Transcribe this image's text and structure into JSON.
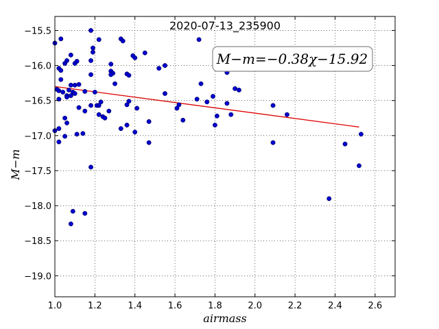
{
  "chart_data": {
    "type": "scatter",
    "title": "2020-07-13_235900",
    "xlabel": "airmass",
    "ylabel": "M−m",
    "xlim": [
      1.0,
      2.7
    ],
    "ylim": [
      -19.3,
      -15.3
    ],
    "y_inverted": true,
    "grid": true,
    "xticks": [
      1.0,
      1.2,
      1.4,
      1.6,
      1.8,
      2.0,
      2.2,
      2.4,
      2.6
    ],
    "yticks": [
      -15.5,
      -16.0,
      -16.5,
      -17.0,
      -17.5,
      -18.0,
      -18.5,
      -19.0
    ],
    "xtick_labels": [
      "1.0",
      "1.2",
      "1.4",
      "1.6",
      "1.8",
      "2.0",
      "2.2",
      "2.4",
      "2.6"
    ],
    "ytick_labels": [
      "−15.5",
      "−16.0",
      "−16.5",
      "−17.0",
      "−17.5",
      "−18.0",
      "−18.5",
      "−19.0"
    ],
    "annotation": "M−m=−0.38χ−15.92",
    "annotation_placement": "top-right",
    "point_color": "#0000cc",
    "fit_color": "#dd0000",
    "fit_line": {
      "slope": -0.38,
      "intercept": -15.92,
      "x_range": [
        1.0,
        2.52
      ]
    },
    "points": [
      {
        "x": 1.0,
        "y": -15.68
      },
      {
        "x": 1.02,
        "y": -16.04
      },
      {
        "x": 1.03,
        "y": -16.07
      },
      {
        "x": 1.03,
        "y": -15.62
      },
      {
        "x": 1.01,
        "y": -16.34
      },
      {
        "x": 1.02,
        "y": -16.36
      },
      {
        "x": 1.04,
        "y": -16.38
      },
      {
        "x": 1.03,
        "y": -16.2
      },
      {
        "x": 1.02,
        "y": -16.48
      },
      {
        "x": 1.05,
        "y": -15.97
      },
      {
        "x": 1.06,
        "y": -15.93
      },
      {
        "x": 1.08,
        "y": -15.85
      },
      {
        "x": 1.1,
        "y": -15.97
      },
      {
        "x": 1.11,
        "y": -15.94
      },
      {
        "x": 1.08,
        "y": -16.28
      },
      {
        "x": 1.1,
        "y": -16.28
      },
      {
        "x": 1.12,
        "y": -16.27
      },
      {
        "x": 1.07,
        "y": -16.35
      },
      {
        "x": 1.09,
        "y": -16.38
      },
      {
        "x": 1.06,
        "y": -16.43
      },
      {
        "x": 1.08,
        "y": -16.43
      },
      {
        "x": 1.1,
        "y": -16.4
      },
      {
        "x": 1.06,
        "y": -16.45
      },
      {
        "x": 1.05,
        "y": -16.75
      },
      {
        "x": 1.06,
        "y": -16.82
      },
      {
        "x": 1.0,
        "y": -16.93
      },
      {
        "x": 1.02,
        "y": -16.9
      },
      {
        "x": 1.05,
        "y": -17.01
      },
      {
        "x": 1.02,
        "y": -17.09
      },
      {
        "x": 1.11,
        "y": -16.98
      },
      {
        "x": 1.14,
        "y": -16.97
      },
      {
        "x": 1.12,
        "y": -16.6
      },
      {
        "x": 1.15,
        "y": -16.65
      },
      {
        "x": 1.15,
        "y": -16.37
      },
      {
        "x": 1.18,
        "y": -15.5
      },
      {
        "x": 1.19,
        "y": -15.75
      },
      {
        "x": 1.19,
        "y": -15.81
      },
      {
        "x": 1.22,
        "y": -15.63
      },
      {
        "x": 1.18,
        "y": -15.93
      },
      {
        "x": 1.18,
        "y": -16.13
      },
      {
        "x": 1.2,
        "y": -16.38
      },
      {
        "x": 1.21,
        "y": -16.57
      },
      {
        "x": 1.18,
        "y": -16.57
      },
      {
        "x": 1.22,
        "y": -16.57
      },
      {
        "x": 1.23,
        "y": -16.52
      },
      {
        "x": 1.22,
        "y": -16.7
      },
      {
        "x": 1.24,
        "y": -16.73
      },
      {
        "x": 1.25,
        "y": -16.75
      },
      {
        "x": 1.27,
        "y": -16.65
      },
      {
        "x": 1.28,
        "y": -15.98
      },
      {
        "x": 1.28,
        "y": -16.08
      },
      {
        "x": 1.29,
        "y": -16.11
      },
      {
        "x": 1.28,
        "y": -16.13
      },
      {
        "x": 1.3,
        "y": -16.26
      },
      {
        "x": 1.33,
        "y": -15.62
      },
      {
        "x": 1.34,
        "y": -15.65
      },
      {
        "x": 1.36,
        "y": -16.12
      },
      {
        "x": 1.37,
        "y": -16.14
      },
      {
        "x": 1.37,
        "y": -16.51
      },
      {
        "x": 1.36,
        "y": -16.56
      },
      {
        "x": 1.39,
        "y": -15.86
      },
      {
        "x": 1.4,
        "y": -15.89
      },
      {
        "x": 1.45,
        "y": -15.82
      },
      {
        "x": 1.41,
        "y": -16.61
      },
      {
        "x": 1.33,
        "y": -16.9
      },
      {
        "x": 1.36,
        "y": -16.85
      },
      {
        "x": 1.4,
        "y": -16.95
      },
      {
        "x": 1.47,
        "y": -16.8
      },
      {
        "x": 1.47,
        "y": -17.1
      },
      {
        "x": 1.52,
        "y": -16.04
      },
      {
        "x": 1.55,
        "y": -16.0
      },
      {
        "x": 1.55,
        "y": -16.4
      },
      {
        "x": 1.61,
        "y": -16.61
      },
      {
        "x": 1.62,
        "y": -16.56
      },
      {
        "x": 1.64,
        "y": -16.78
      },
      {
        "x": 1.72,
        "y": -15.63
      },
      {
        "x": 1.73,
        "y": -16.26
      },
      {
        "x": 1.71,
        "y": -16.48
      },
      {
        "x": 1.76,
        "y": -16.52
      },
      {
        "x": 1.79,
        "y": -16.44
      },
      {
        "x": 1.81,
        "y": -16.72
      },
      {
        "x": 1.8,
        "y": -16.85
      },
      {
        "x": 1.86,
        "y": -16.1
      },
      {
        "x": 1.9,
        "y": -16.33
      },
      {
        "x": 1.92,
        "y": -16.35
      },
      {
        "x": 1.86,
        "y": -16.54
      },
      {
        "x": 1.88,
        "y": -16.7
      },
      {
        "x": 2.09,
        "y": -16.57
      },
      {
        "x": 2.16,
        "y": -16.7
      },
      {
        "x": 2.09,
        "y": -17.1
      },
      {
        "x": 1.18,
        "y": -17.45
      },
      {
        "x": 1.09,
        "y": -18.08
      },
      {
        "x": 1.15,
        "y": -18.11
      },
      {
        "x": 1.08,
        "y": -18.26
      },
      {
        "x": 2.37,
        "y": -17.9
      },
      {
        "x": 2.45,
        "y": -17.12
      },
      {
        "x": 2.53,
        "y": -16.98
      },
      {
        "x": 2.52,
        "y": -17.43
      }
    ]
  }
}
